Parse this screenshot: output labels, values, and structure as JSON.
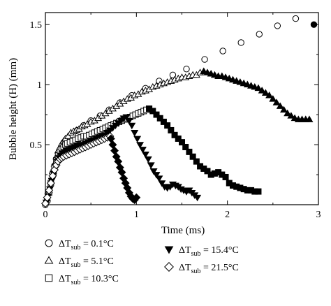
{
  "chart_data": {
    "type": "scatter",
    "title": "",
    "xlabel": "Time (ms)",
    "ylabel": "Bubble height (H) (mm)",
    "xlim": [
      0,
      3
    ],
    "ylim": [
      0,
      1.6
    ],
    "xticks": [
      "0",
      "1",
      "2",
      "3"
    ],
    "yticks": [
      "0.5",
      "1",
      "1.5"
    ],
    "xtick_values": [
      0,
      1,
      2,
      3
    ],
    "ytick_values": [
      0.5,
      1,
      1.5
    ],
    "grid": false,
    "legend_position": "bottom",
    "series": [
      {
        "name": "ΔT_sub = 0.1°C",
        "delta": "ΔT",
        "sub": "sub",
        "value_text": " = 0.1°C",
        "marker": "circle-open",
        "x": [
          0.0,
          0.03,
          0.06,
          0.09,
          0.12,
          0.15,
          0.18,
          0.22,
          0.26,
          0.3,
          0.35,
          0.42,
          0.5,
          0.6,
          0.7,
          0.82,
          0.95,
          1.1,
          1.25,
          1.4,
          1.55,
          1.75,
          1.95,
          2.15,
          2.35,
          2.55,
          2.75,
          2.95
        ],
        "y": [
          0.0,
          0.1,
          0.18,
          0.26,
          0.33,
          0.4,
          0.46,
          0.51,
          0.55,
          0.58,
          0.62,
          0.66,
          0.7,
          0.74,
          0.79,
          0.85,
          0.91,
          0.97,
          1.03,
          1.08,
          1.13,
          1.21,
          1.28,
          1.35,
          1.42,
          1.49,
          1.55,
          1.5
        ],
        "filled_last": true
      },
      {
        "name": "ΔT_sub = 5.1°C",
        "delta": "ΔT",
        "sub": "sub",
        "value_text": " = 5.1°C",
        "marker": "triangle-up-open",
        "x": [
          0.02,
          0.04,
          0.06,
          0.08,
          0.1,
          0.12,
          0.14,
          0.16,
          0.18,
          0.2,
          0.22,
          0.25,
          0.28,
          0.31,
          0.34,
          0.37,
          0.4,
          0.43,
          0.46,
          0.5,
          0.54,
          0.58,
          0.62,
          0.66,
          0.7,
          0.74,
          0.78,
          0.82,
          0.86,
          0.9,
          0.94,
          0.98,
          1.02,
          1.06,
          1.1,
          1.14,
          1.18,
          1.22,
          1.26,
          1.3,
          1.34,
          1.38,
          1.42,
          1.46,
          1.5,
          1.54,
          1.58,
          1.62,
          1.66,
          1.7,
          1.74
        ],
        "y": [
          0.05,
          0.12,
          0.2,
          0.28,
          0.34,
          0.4,
          0.45,
          0.48,
          0.51,
          0.53,
          0.55,
          0.57,
          0.6,
          0.61,
          0.62,
          0.63,
          0.65,
          0.66,
          0.67,
          0.69,
          0.7,
          0.72,
          0.74,
          0.76,
          0.78,
          0.8,
          0.82,
          0.84,
          0.86,
          0.88,
          0.89,
          0.91,
          0.92,
          0.94,
          0.95,
          0.96,
          0.98,
          0.99,
          1.0,
          1.01,
          1.02,
          1.03,
          1.04,
          1.05,
          1.06,
          1.06,
          1.07,
          1.08,
          1.08,
          1.1,
          1.11
        ]
      },
      {
        "name": "ΔT_sub = 10.3°C",
        "delta": "ΔT",
        "sub": "sub",
        "value_text": " = 10.3°C",
        "marker": "square-open",
        "x": [
          0.02,
          0.04,
          0.06,
          0.08,
          0.1,
          0.12,
          0.14,
          0.16,
          0.18,
          0.2,
          0.22,
          0.24,
          0.27,
          0.3,
          0.33,
          0.36,
          0.39,
          0.42,
          0.45,
          0.48,
          0.51,
          0.54,
          0.57,
          0.6,
          0.63,
          0.66,
          0.69,
          0.72,
          0.75,
          0.78,
          0.81,
          0.84,
          0.87,
          0.9,
          0.93,
          0.96,
          0.99,
          1.02,
          1.05,
          1.08,
          1.11,
          1.14
        ],
        "y": [
          0.04,
          0.1,
          0.18,
          0.25,
          0.31,
          0.37,
          0.41,
          0.44,
          0.46,
          0.48,
          0.5,
          0.51,
          0.52,
          0.53,
          0.54,
          0.55,
          0.56,
          0.57,
          0.57,
          0.58,
          0.59,
          0.6,
          0.61,
          0.62,
          0.63,
          0.64,
          0.65,
          0.66,
          0.67,
          0.68,
          0.69,
          0.7,
          0.71,
          0.72,
          0.73,
          0.74,
          0.75,
          0.76,
          0.77,
          0.78,
          0.79,
          0.8
        ]
      },
      {
        "name": "ΔT_sub = 15.4°C",
        "delta": "ΔT",
        "sub": "sub",
        "value_text": " = 15.4°C",
        "marker": "triangle-down-filled",
        "x": [
          0.01,
          0.03,
          0.05,
          0.07,
          0.09,
          0.11,
          0.13,
          0.15,
          0.17,
          0.19,
          0.21,
          0.23,
          0.26,
          0.29,
          0.32,
          0.35,
          0.38,
          0.41,
          0.44,
          0.47,
          0.5,
          0.53,
          0.56,
          0.59,
          0.62,
          0.65,
          0.68,
          0.71,
          0.74,
          0.77,
          0.8,
          0.83,
          0.86,
          0.89,
          0.92,
          0.95,
          0.98,
          1.01,
          1.04,
          1.07,
          1.1,
          1.13,
          1.16,
          1.19,
          1.22,
          1.25,
          1.28,
          1.31,
          1.34,
          1.37,
          1.4,
          1.43,
          1.46,
          1.49,
          1.52,
          1.55,
          1.58,
          1.61,
          1.64,
          1.67
        ],
        "y": [
          0.02,
          0.07,
          0.13,
          0.2,
          0.26,
          0.32,
          0.36,
          0.39,
          0.41,
          0.43,
          0.44,
          0.45,
          0.46,
          0.47,
          0.48,
          0.49,
          0.5,
          0.5,
          0.51,
          0.52,
          0.53,
          0.54,
          0.55,
          0.56,
          0.57,
          0.58,
          0.6,
          0.62,
          0.64,
          0.66,
          0.68,
          0.7,
          0.72,
          0.73,
          0.7,
          0.66,
          0.6,
          0.55,
          0.5,
          0.46,
          0.42,
          0.38,
          0.33,
          0.28,
          0.25,
          0.22,
          0.18,
          0.15,
          0.14,
          0.15,
          0.17,
          0.16,
          0.15,
          0.13,
          0.12,
          0.11,
          0.12,
          0.1,
          0.08,
          0.06
        ]
      },
      {
        "name": "ΔT_sub = 21.5°C",
        "delta": "ΔT",
        "sub": "sub",
        "value_text": " = 21.5°C",
        "marker": "diamond-open",
        "x": [
          0.0,
          0.02,
          0.04,
          0.06,
          0.08,
          0.1,
          0.12,
          0.14,
          0.16,
          0.18,
          0.2,
          0.23,
          0.26,
          0.29,
          0.32,
          0.35,
          0.38,
          0.41,
          0.44,
          0.47,
          0.5,
          0.53,
          0.56,
          0.59,
          0.62,
          0.65,
          0.68,
          0.71
        ],
        "y": [
          0.01,
          0.06,
          0.12,
          0.18,
          0.24,
          0.29,
          0.33,
          0.36,
          0.38,
          0.39,
          0.4,
          0.41,
          0.42,
          0.43,
          0.44,
          0.45,
          0.46,
          0.47,
          0.48,
          0.49,
          0.5,
          0.51,
          0.52,
          0.53,
          0.54,
          0.55,
          0.56,
          0.57
        ]
      },
      {
        "name": "ΔT_sub = 21.5°C (collapse)",
        "marker": "diamond-filled",
        "legend": false,
        "x": [
          0.72,
          0.74,
          0.76,
          0.78,
          0.8,
          0.82,
          0.84,
          0.86,
          0.88,
          0.9,
          0.92,
          0.94,
          0.96,
          0.98,
          1.0
        ],
        "y": [
          0.55,
          0.5,
          0.45,
          0.4,
          0.36,
          0.31,
          0.27,
          0.22,
          0.18,
          0.14,
          0.1,
          0.07,
          0.05,
          0.04,
          0.06
        ]
      },
      {
        "name": "ΔT_sub = 10.3°C (collapse)",
        "marker": "square-filled",
        "legend": false,
        "x": [
          1.14,
          1.18,
          1.22,
          1.26,
          1.3,
          1.34,
          1.38,
          1.42,
          1.46,
          1.5,
          1.54,
          1.58,
          1.62,
          1.66,
          1.7,
          1.74,
          1.78,
          1.82,
          1.86,
          1.9,
          1.94,
          1.98,
          2.02,
          2.06,
          2.1,
          2.14,
          2.18,
          2.22,
          2.26,
          2.3,
          2.34
        ],
        "y": [
          0.8,
          0.78,
          0.75,
          0.72,
          0.69,
          0.66,
          0.62,
          0.58,
          0.55,
          0.52,
          0.48,
          0.44,
          0.4,
          0.36,
          0.32,
          0.3,
          0.28,
          0.25,
          0.26,
          0.27,
          0.25,
          0.23,
          0.18,
          0.16,
          0.15,
          0.14,
          0.13,
          0.12,
          0.12,
          0.11,
          0.11
        ]
      },
      {
        "name": "ΔT_sub = 5.1°C (collapse)",
        "marker": "triangle-up-filled",
        "legend": false,
        "x": [
          1.74,
          1.78,
          1.82,
          1.86,
          1.9,
          1.94,
          1.98,
          2.02,
          2.06,
          2.1,
          2.14,
          2.18,
          2.22,
          2.26,
          2.3,
          2.34,
          2.38,
          2.42,
          2.46,
          2.5,
          2.54,
          2.58,
          2.62,
          2.66,
          2.7,
          2.74,
          2.78,
          2.82,
          2.86,
          2.9
        ],
        "y": [
          1.11,
          1.1,
          1.09,
          1.08,
          1.07,
          1.07,
          1.06,
          1.05,
          1.04,
          1.03,
          1.02,
          1.01,
          1.0,
          0.99,
          0.98,
          0.97,
          0.95,
          0.93,
          0.91,
          0.88,
          0.85,
          0.82,
          0.79,
          0.76,
          0.74,
          0.72,
          0.71,
          0.71,
          0.71,
          0.71
        ]
      }
    ]
  }
}
